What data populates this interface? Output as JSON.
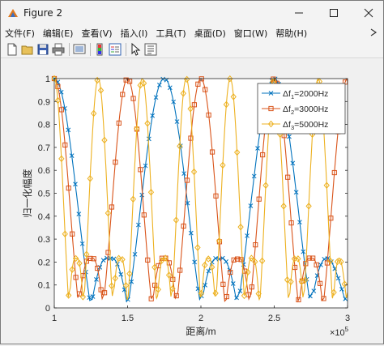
{
  "window": {
    "title": "Figure 2",
    "icons": {
      "app": "matlab-figure-icon",
      "minimize": "minimize-icon",
      "maximize": "maximize-icon",
      "close": "close-icon"
    }
  },
  "menubar": {
    "items": [
      "文件(F)",
      "编辑(E)",
      "查看(V)",
      "插入(I)",
      "工具(T)",
      "桌面(D)",
      "窗口(W)",
      "帮助(H)"
    ],
    "dock_icon": "dock-arrow-icon"
  },
  "toolbar": {
    "buttons": [
      "new-figure-icon",
      "open-file-icon",
      "save-icon",
      "print-icon",
      "link-plot-icon",
      "insert-colorbar-icon",
      "insert-legend-icon",
      "edit-plot-icon",
      "property-inspector-icon"
    ]
  },
  "colors": {
    "blue": "#0072BD",
    "orange": "#D95319",
    "yellow": "#EDB120"
  },
  "chart_data": {
    "type": "line",
    "xlabel": "距离/m",
    "ylabel": "归一化幅度",
    "xlim": [
      100000,
      300000
    ],
    "ylim": [
      0,
      1
    ],
    "x_tick_labels": [
      "1",
      "1.5",
      "2",
      "2.5",
      "3"
    ],
    "y_tick_labels": [
      "0",
      "0.1",
      "0.2",
      "0.3",
      "0.4",
      "0.5",
      "0.6",
      "0.7",
      "0.8",
      "0.9",
      "1"
    ],
    "x_exponent_base": "×10",
    "x_exponent_power": "5",
    "grid": false,
    "legend_position": "top-right",
    "series": [
      {
        "legend_prefix": "Δf",
        "legend_sub": "1",
        "legend_value": "=2000Hz",
        "color": "#0072BD",
        "marker": "x",
        "peaks": [
          100000,
          175000,
          250000
        ],
        "lobe_width": 25000,
        "ripple": 0.1,
        "markers_per_lobe": 23
      },
      {
        "legend_prefix": "Δf",
        "legend_sub": "2",
        "legend_value": "=3000Hz",
        "color": "#D95319",
        "marker": "square",
        "peaks": [
          100000,
          150000,
          200000,
          250000,
          300000
        ],
        "lobe_width": 16700,
        "ripple": 0.1,
        "markers_per_lobe": 15
      },
      {
        "legend_prefix": "Δf",
        "legend_sub": "3",
        "legend_value": "=5000Hz",
        "color": "#EDB120",
        "marker": "diamond",
        "peaks": [
          100000,
          130000,
          160000,
          190000,
          220000,
          250000,
          280000
        ],
        "lobe_width": 10000,
        "ripple": 0.12,
        "markers_per_lobe": 9
      }
    ]
  }
}
